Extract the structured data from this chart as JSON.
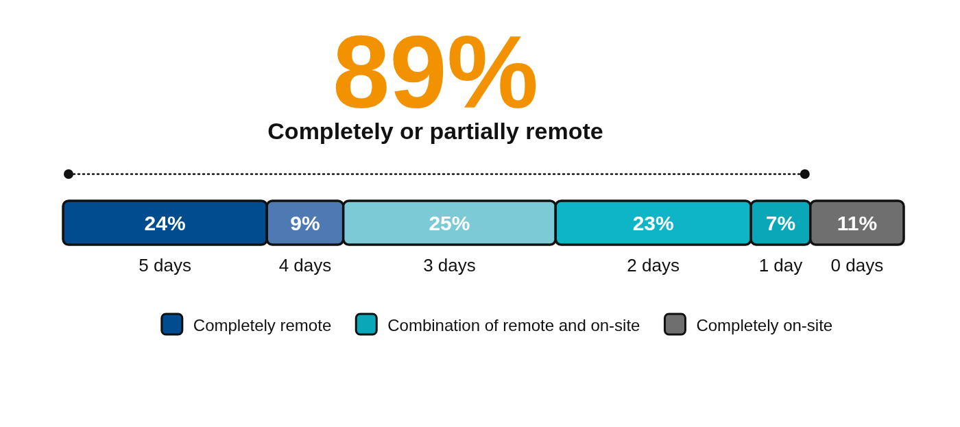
{
  "chart_data": {
    "type": "bar",
    "orientation": "horizontal",
    "stacked": true,
    "title": "89%",
    "subtitle": "Completely or partially remote",
    "categories": [
      null
    ],
    "series": [
      {
        "name": "5 days",
        "color": "#004c8f",
        "values": [
          24
        ],
        "value_labels": [
          "24%"
        ]
      },
      {
        "name": "4 days",
        "color": "#4f79b3",
        "values": [
          9
        ],
        "value_labels": [
          "9%"
        ]
      },
      {
        "name": "3 days",
        "color": "#7ccad6",
        "values": [
          25
        ],
        "value_labels": [
          "25%"
        ]
      },
      {
        "name": "2 days",
        "color": "#0db5c6",
        "values": [
          23
        ],
        "value_labels": [
          "23%"
        ]
      },
      {
        "name": "1 day",
        "color": "#0aa7b8",
        "values": [
          7
        ],
        "value_labels": [
          "7%"
        ]
      },
      {
        "name": "0 days",
        "color": "#6f6f6f",
        "values": [
          11
        ],
        "value_labels": [
          "11%"
        ]
      }
    ],
    "annotations": [
      "Completely remote",
      "Combination of remote and on-site",
      "Completely on-site"
    ]
  }
}
